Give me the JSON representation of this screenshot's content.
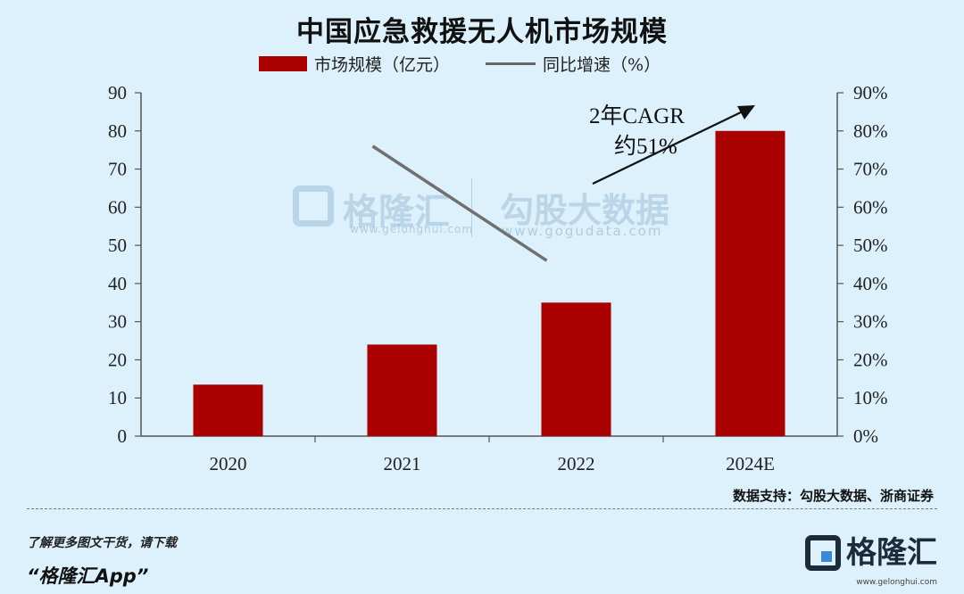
{
  "page": {
    "title": "中国应急救援无人机市场规模",
    "source": "数据支持：勾股大数据、浙商证券",
    "footer_line1": "了解更多图文干货，请下载",
    "footer_line2": "“格隆汇App”",
    "brand_name": "格隆汇",
    "brand_url": "www.gelonghui.com",
    "watermark_left": "格隆汇",
    "watermark_left_url": "www.gelonghui.com",
    "watermark_right": "勾股大数据",
    "watermark_right_url": "www.gogudata.com"
  },
  "colors": {
    "background": "#dcf1fb",
    "bar": "#aa0000",
    "line": "#707070",
    "axis": "#555555"
  },
  "chart_data": {
    "type": "bar",
    "title": "中国应急救援无人机市场规模",
    "categories": [
      "2020",
      "2021",
      "2022",
      "2024E"
    ],
    "series": [
      {
        "name": "市场规模（亿元）",
        "type": "bar",
        "axis": "left",
        "values": [
          13.5,
          24,
          35,
          80
        ]
      },
      {
        "name": "同比增速（%）",
        "type": "line",
        "axis": "right",
        "values": [
          null,
          76,
          46,
          null
        ]
      }
    ],
    "y_left": {
      "min": 0,
      "max": 90,
      "step": 10,
      "ticks": [
        "0",
        "10",
        "20",
        "30",
        "40",
        "50",
        "60",
        "70",
        "80",
        "90"
      ]
    },
    "y_right": {
      "min": 0,
      "max": 90,
      "step": 10,
      "ticks": [
        "0%",
        "10%",
        "20%",
        "30%",
        "40%",
        "50%",
        "60%",
        "70%",
        "80%",
        "90%"
      ]
    },
    "annotation": {
      "line1": "2年CAGR",
      "line2": "约51%"
    },
    "legend": {
      "position": "top"
    },
    "grid": false
  }
}
